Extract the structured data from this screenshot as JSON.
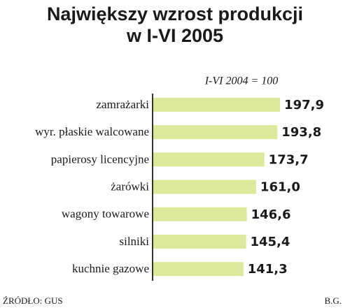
{
  "chart_data": {
    "type": "bar",
    "orientation": "horizontal",
    "title": "Największy wzrost produkcji",
    "title_line2": "w I-VI 2005",
    "subtitle": "I-VI 2004 = 100",
    "categories": [
      "zamrażarki",
      "wyr. płaskie walcowane",
      "papierosy licencyjne",
      "żarówki",
      "wagony towarowe",
      "silniki",
      "kuchnie gazowe"
    ],
    "values": [
      197.9,
      193.8,
      173.7,
      161.0,
      146.6,
      145.4,
      141.3
    ],
    "value_labels": [
      "197,9",
      "193,8",
      "173,7",
      "161,0",
      "146,6",
      "145,4",
      "141,3"
    ],
    "color": "#dde89a",
    "xlim": [
      0,
      200
    ],
    "source": "ŹRÓDŁO: GUS",
    "author": "B.G."
  }
}
